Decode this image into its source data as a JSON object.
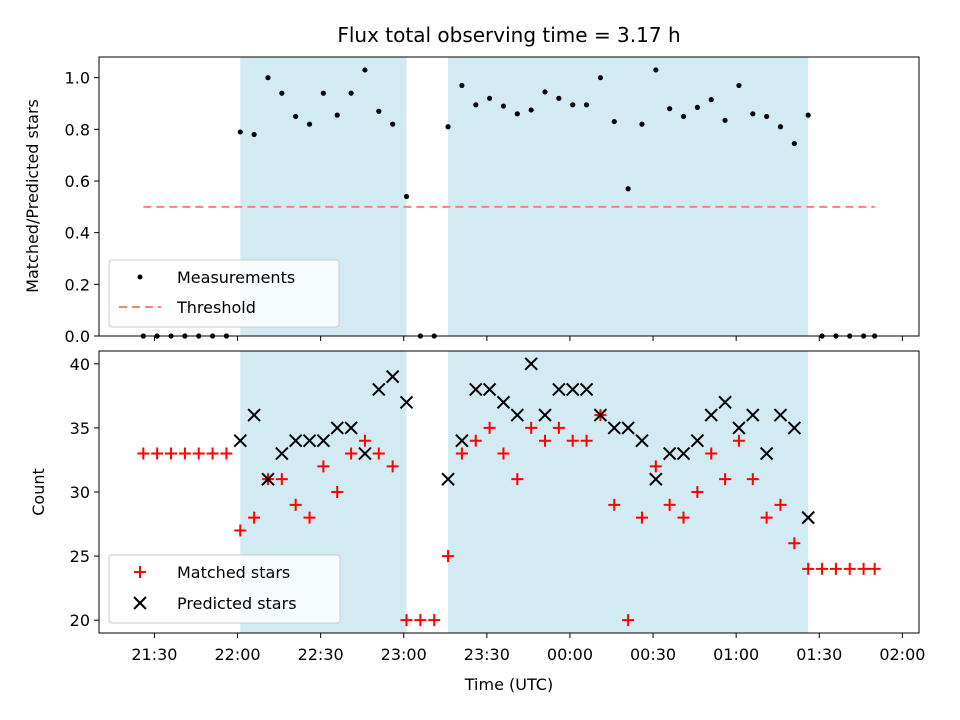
{
  "colors": {
    "night_span": "#add8e6",
    "measurement": "#000000",
    "threshold": "#ff7f7f",
    "matched": "#ff0000",
    "predicted": "#000000"
  },
  "chart_data": [
    {
      "type": "scatter",
      "title": "Flux total observing time = 3.17 h",
      "xlabel": "",
      "ylabel": "Matched/Predicted stars",
      "ylim": [
        0,
        1.08
      ],
      "yticks": [
        "0.0",
        "0.2",
        "0.4",
        "0.6",
        "0.8",
        "1.0"
      ],
      "xticks": [
        "21:30",
        "22:00",
        "22:30",
        "23:00",
        "23:30",
        "00:00",
        "00:30",
        "01:00",
        "01:30",
        "02:00"
      ],
      "shaded_spans": [
        [
          "22:01",
          "23:01"
        ],
        [
          "23:16",
          "01:26"
        ]
      ],
      "legend": {
        "position": "lower left",
        "entries": [
          "Measurements",
          "Threshold"
        ]
      },
      "threshold": {
        "name": "Threshold",
        "value": 0.5,
        "x": [
          "21:26",
          "01:50"
        ]
      },
      "series": [
        {
          "name": "Measurements",
          "x": [
            "21:26",
            "21:31",
            "21:36",
            "21:41",
            "21:46",
            "21:51",
            "21:56",
            "22:01",
            "22:06",
            "22:11",
            "22:16",
            "22:21",
            "22:26",
            "22:31",
            "22:36",
            "22:41",
            "22:46",
            "22:51",
            "22:56",
            "23:01",
            "23:06",
            "23:11",
            "23:16",
            "23:21",
            "23:26",
            "23:31",
            "23:36",
            "23:41",
            "23:46",
            "23:51",
            "23:56",
            "00:01",
            "00:06",
            "00:11",
            "00:16",
            "00:21",
            "00:26",
            "00:31",
            "00:36",
            "00:41",
            "00:46",
            "00:51",
            "00:56",
            "01:01",
            "01:06",
            "01:11",
            "01:16",
            "01:21",
            "01:26",
            "01:31",
            "01:36",
            "01:41",
            "01:46",
            "01:50"
          ],
          "y": [
            0,
            0,
            0,
            0,
            0,
            0,
            0,
            0.79,
            0.78,
            1.0,
            0.94,
            0.85,
            0.82,
            0.94,
            0.855,
            0.94,
            1.03,
            0.87,
            0.82,
            0.54,
            0,
            0,
            0.81,
            0.97,
            0.895,
            0.92,
            0.89,
            0.86,
            0.875,
            0.945,
            0.92,
            0.895,
            0.895,
            1.0,
            0.83,
            0.57,
            0.82,
            1.03,
            0.88,
            0.85,
            0.885,
            0.915,
            0.835,
            0.97,
            0.86,
            0.85,
            0.81,
            0.745,
            0.855,
            0,
            0,
            0,
            0,
            0
          ]
        }
      ]
    },
    {
      "type": "scatter",
      "title": "",
      "xlabel": "Time (UTC)",
      "ylabel": "Count",
      "ylim": [
        19,
        41
      ],
      "yticks": [
        "20",
        "25",
        "30",
        "35",
        "40"
      ],
      "xticks": [
        "21:30",
        "22:00",
        "22:30",
        "23:00",
        "23:30",
        "00:00",
        "00:30",
        "01:00",
        "01:30",
        "02:00"
      ],
      "shaded_spans": [
        [
          "22:01",
          "23:01"
        ],
        [
          "23:16",
          "01:26"
        ]
      ],
      "legend": {
        "position": "lower left",
        "entries": [
          "Matched stars",
          "Predicted stars"
        ]
      },
      "series": [
        {
          "name": "Matched stars",
          "x": [
            "21:26",
            "21:31",
            "21:36",
            "21:41",
            "21:46",
            "21:51",
            "21:56",
            "22:01",
            "22:06",
            "22:11",
            "22:16",
            "22:21",
            "22:26",
            "22:31",
            "22:36",
            "22:41",
            "22:46",
            "22:51",
            "22:56",
            "23:01",
            "23:06",
            "23:11",
            "23:16",
            "23:21",
            "23:26",
            "23:31",
            "23:36",
            "23:41",
            "23:46",
            "23:51",
            "23:56",
            "00:01",
            "00:06",
            "00:11",
            "00:16",
            "00:21",
            "00:26",
            "00:31",
            "00:36",
            "00:41",
            "00:46",
            "00:51",
            "00:56",
            "01:01",
            "01:06",
            "01:11",
            "01:16",
            "01:21",
            "01:26",
            "01:31",
            "01:36",
            "01:41",
            "01:46",
            "01:50"
          ],
          "y": [
            33,
            33,
            33,
            33,
            33,
            33,
            33,
            27,
            28,
            31,
            31,
            29,
            28,
            32,
            30,
            33,
            34,
            33,
            32,
            20,
            20,
            20,
            25,
            33,
            34,
            35,
            33,
            31,
            35,
            34,
            35,
            34,
            34,
            36,
            29,
            20,
            28,
            32,
            29,
            28,
            30,
            33,
            31,
            34,
            31,
            28,
            29,
            26,
            24,
            24,
            24,
            24,
            24,
            24
          ]
        },
        {
          "name": "Predicted stars",
          "x": [
            "22:01",
            "22:06",
            "22:11",
            "22:16",
            "22:21",
            "22:26",
            "22:31",
            "22:36",
            "22:41",
            "22:46",
            "22:51",
            "22:56",
            "23:01",
            "23:16",
            "23:21",
            "23:26",
            "23:31",
            "23:36",
            "23:41",
            "23:46",
            "23:51",
            "23:56",
            "00:01",
            "00:06",
            "00:11",
            "00:16",
            "00:21",
            "00:26",
            "00:31",
            "00:36",
            "00:41",
            "00:46",
            "00:51",
            "00:56",
            "01:01",
            "01:06",
            "01:11",
            "01:16",
            "01:21",
            "01:26"
          ],
          "y": [
            34,
            36,
            31,
            33,
            34,
            34,
            34,
            35,
            35,
            33,
            38,
            39,
            37,
            31,
            34,
            38,
            38,
            37,
            36,
            40,
            36,
            38,
            38,
            38,
            36,
            35,
            35,
            34,
            31,
            33,
            33,
            34,
            36,
            37,
            35,
            36,
            33,
            36,
            35,
            28
          ]
        }
      ]
    }
  ]
}
